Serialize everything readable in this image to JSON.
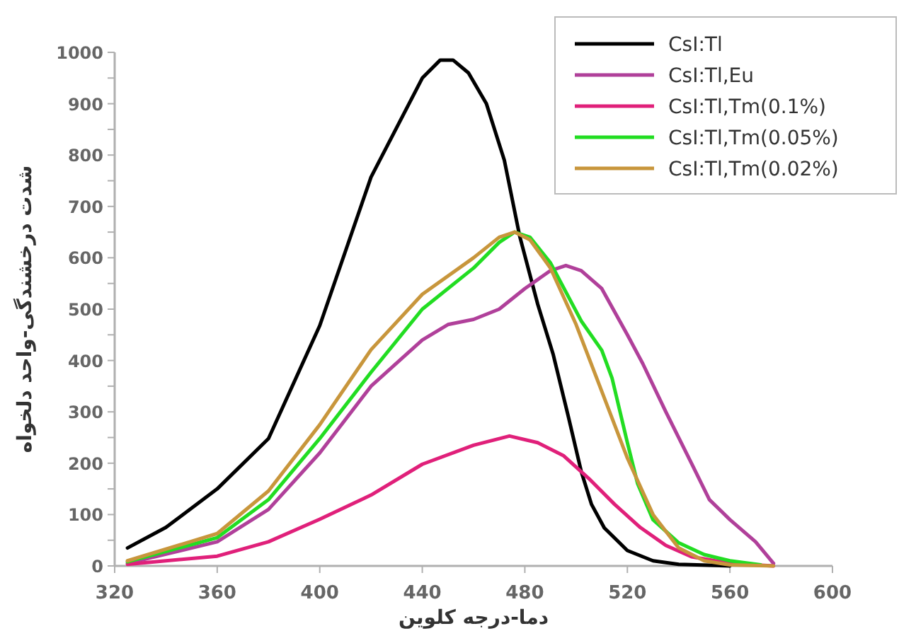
{
  "chart_data": {
    "type": "line",
    "xlabel": "دما-درجه کلوین",
    "ylabel": "شدت درخشندگی-واحد دلخواه",
    "xlim": [
      320,
      600
    ],
    "ylim": [
      0,
      1000
    ],
    "xticks": [
      320,
      360,
      400,
      440,
      480,
      520,
      560,
      600
    ],
    "yticks": [
      0,
      {
        "value": 50,
        "label": null
      },
      100,
      {
        "value": 150,
        "label": null
      },
      200,
      {
        "value": 250,
        "label": null
      },
      300,
      {
        "value": 350,
        "label": null
      },
      400,
      {
        "value": 450,
        "label": null
      },
      500,
      {
        "value": 550,
        "label": null
      },
      600,
      {
        "value": 650,
        "label": null
      },
      700,
      {
        "value": 750,
        "label": null
      },
      800,
      {
        "value": 850,
        "label": null
      },
      900,
      {
        "value": 950,
        "label": null
      },
      1000
    ],
    "grid": false,
    "legend": "top right",
    "marker": "none",
    "line_style": "solid",
    "series": [
      {
        "name": "CsI:Tl",
        "color": "#000000",
        "x": [
          325,
          340,
          360,
          380,
          400,
          420,
          440,
          447,
          452,
          458,
          465,
          472,
          478,
          485,
          491,
          497,
          502,
          506,
          511,
          520,
          530,
          540,
          560
        ],
        "values": [
          35,
          75,
          150,
          248,
          468,
          757,
          950,
          985,
          985,
          960,
          900,
          790,
          642,
          510,
          413,
          290,
          184,
          120,
          74,
          30,
          10,
          3,
          0
        ]
      },
      {
        "name": "CsI:Tl,Eu",
        "color": "#b0409a",
        "x": [
          325,
          360,
          380,
          400,
          420,
          440,
          450,
          460,
          470,
          480,
          490,
          496,
          502,
          510,
          520,
          526,
          535,
          545,
          552,
          560,
          570,
          577
        ],
        "values": [
          5,
          47,
          110,
          220,
          350,
          440,
          470,
          480,
          500,
          540,
          575,
          585,
          575,
          540,
          450,
          394,
          300,
          200,
          129,
          90,
          47,
          5
        ]
      },
      {
        "name": "CsI:Tl,Tm(0.1%)",
        "color": "#e0207a",
        "x": [
          325,
          360,
          380,
          400,
          420,
          440,
          460,
          474,
          485,
          495,
          505,
          515,
          525,
          535,
          545,
          560,
          577
        ],
        "values": [
          3,
          19,
          47,
          91,
          138,
          198,
          235,
          253,
          240,
          215,
          170,
          120,
          75,
          40,
          18,
          5,
          0
        ]
      },
      {
        "name": "CsI:Tl,Tm(0.05%)",
        "color": "#22dd22",
        "x": [
          325,
          360,
          380,
          400,
          420,
          440,
          460,
          470,
          476,
          482,
          490,
          502,
          510,
          514,
          520,
          524,
          530,
          540,
          550,
          560,
          572
        ],
        "values": [
          8,
          55,
          129,
          248,
          377,
          500,
          580,
          630,
          650,
          640,
          590,
          477,
          420,
          366,
          240,
          160,
          90,
          45,
          22,
          10,
          2
        ]
      },
      {
        "name": "CsI:Tl,Tm(0.02%)",
        "color": "#c8963c",
        "x": [
          325,
          360,
          380,
          400,
          420,
          440,
          460,
          470,
          476,
          482,
          490,
          500,
          510,
          520,
          530,
          540,
          550,
          560,
          577
        ],
        "values": [
          10,
          63,
          146,
          275,
          421,
          529,
          600,
          640,
          650,
          635,
          580,
          470,
          340,
          210,
          100,
          35,
          10,
          2,
          0
        ]
      }
    ]
  }
}
